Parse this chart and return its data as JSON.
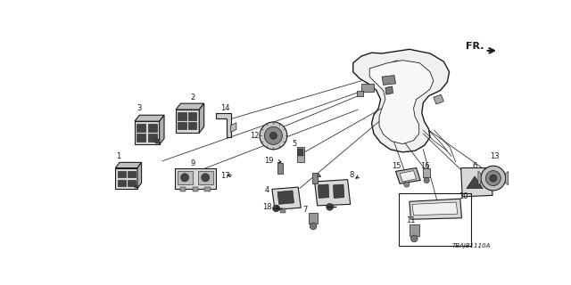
{
  "bg_color": "#ffffff",
  "fig_code": "TBAJB1110A",
  "fr_label": "FR.",
  "lw_main": 0.8,
  "lw_thin": 0.5,
  "gray_dark": "#1a1a1a",
  "gray_mid": "#555555",
  "gray_light": "#aaaaaa",
  "gray_fill": "#d8d8d8",
  "gray_dark_fill": "#444444",
  "label_fontsize": 6.0,
  "figsize": [
    6.4,
    3.2
  ],
  "dpi": 100
}
